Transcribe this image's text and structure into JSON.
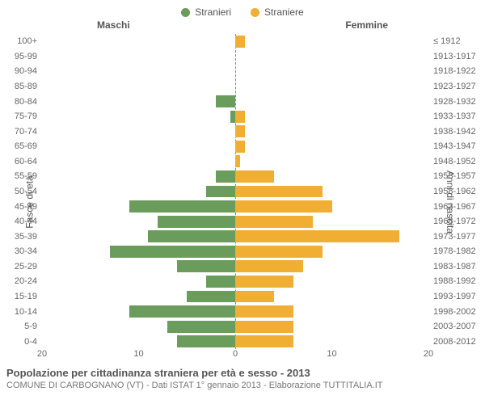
{
  "legend": {
    "items": [
      {
        "label": "Stranieri",
        "color": "#6a9c5c"
      },
      {
        "label": "Straniere",
        "color": "#f0ae33"
      }
    ]
  },
  "headers": {
    "left": "Maschi",
    "right": "Femmine"
  },
  "axis_labels": {
    "left": "Fasce di età",
    "right": "Anni di nascita"
  },
  "chart": {
    "type": "pyramid-bar",
    "x_max": 20,
    "xticks_left": [
      20,
      10,
      0
    ],
    "xticks_right": [
      10,
      20
    ],
    "male_color": "#6a9c5c",
    "female_color": "#f0ae33",
    "background": "#ffffff",
    "center_line_color": "#888888",
    "rows": [
      {
        "age": "100+",
        "birth": "≤ 1912",
        "m": 0,
        "f": 1
      },
      {
        "age": "95-99",
        "birth": "1913-1917",
        "m": 0,
        "f": 0
      },
      {
        "age": "90-94",
        "birth": "1918-1922",
        "m": 0,
        "f": 0
      },
      {
        "age": "85-89",
        "birth": "1923-1927",
        "m": 0,
        "f": 0
      },
      {
        "age": "80-84",
        "birth": "1928-1932",
        "m": 2,
        "f": 0
      },
      {
        "age": "75-79",
        "birth": "1933-1937",
        "m": 0.5,
        "f": 1
      },
      {
        "age": "70-74",
        "birth": "1938-1942",
        "m": 0,
        "f": 1
      },
      {
        "age": "65-69",
        "birth": "1943-1947",
        "m": 0,
        "f": 1
      },
      {
        "age": "60-64",
        "birth": "1948-1952",
        "m": 0,
        "f": 0.5
      },
      {
        "age": "55-59",
        "birth": "1953-1957",
        "m": 2,
        "f": 4
      },
      {
        "age": "50-54",
        "birth": "1958-1962",
        "m": 3,
        "f": 9
      },
      {
        "age": "45-49",
        "birth": "1963-1967",
        "m": 11,
        "f": 10
      },
      {
        "age": "40-44",
        "birth": "1968-1972",
        "m": 8,
        "f": 8
      },
      {
        "age": "35-39",
        "birth": "1973-1977",
        "m": 9,
        "f": 17
      },
      {
        "age": "30-34",
        "birth": "1978-1982",
        "m": 13,
        "f": 9
      },
      {
        "age": "25-29",
        "birth": "1983-1987",
        "m": 6,
        "f": 7
      },
      {
        "age": "20-24",
        "birth": "1988-1992",
        "m": 3,
        "f": 6
      },
      {
        "age": "15-19",
        "birth": "1993-1997",
        "m": 5,
        "f": 4
      },
      {
        "age": "10-14",
        "birth": "1998-2002",
        "m": 11,
        "f": 6
      },
      {
        "age": "5-9",
        "birth": "2003-2007",
        "m": 7,
        "f": 6
      },
      {
        "age": "0-4",
        "birth": "2008-2012",
        "m": 6,
        "f": 6
      }
    ]
  },
  "footer": {
    "title": "Popolazione per cittadinanza straniera per età e sesso - 2013",
    "subtitle": "COMUNE DI CARBOGNANO (VT) - Dati ISTAT 1° gennaio 2013 - Elaborazione TUTTITALIA.IT",
    "title_fontsize": 13,
    "subtitle_fontsize": 11
  }
}
